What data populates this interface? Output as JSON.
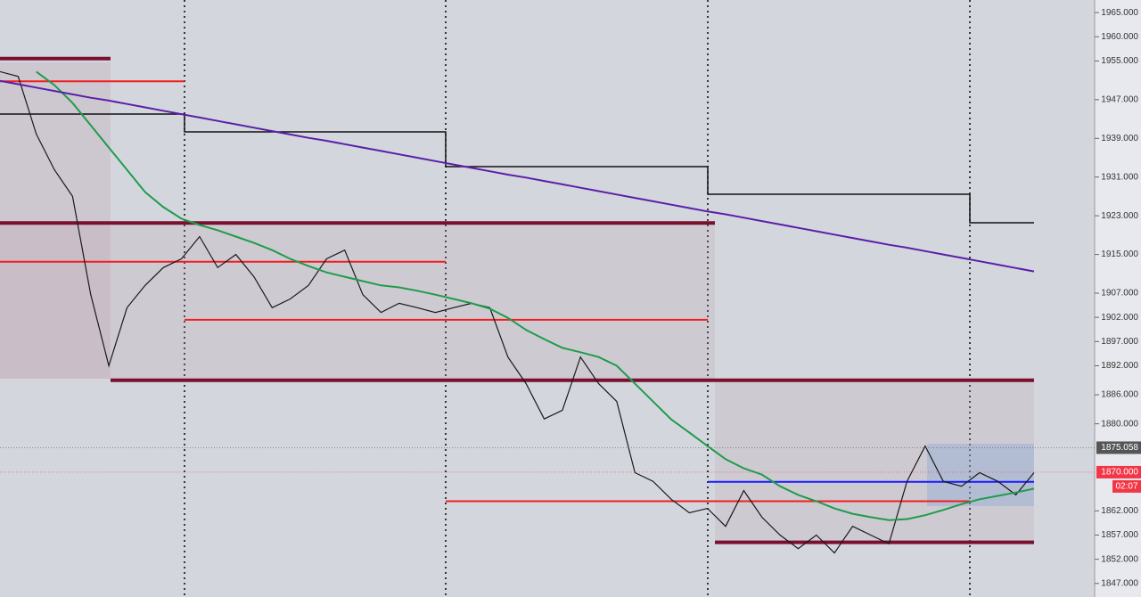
{
  "chart_data": {
    "type": "line",
    "ylim": [
      1844.2,
      1967.6
    ],
    "yticks": [
      {
        "value": 1965,
        "label": "1965.000"
      },
      {
        "value": 1960,
        "label": "1960.000"
      },
      {
        "value": 1955,
        "label": "1955.000"
      },
      {
        "value": 1947,
        "label": "1947.000"
      },
      {
        "value": 1939,
        "label": "1939.000"
      },
      {
        "value": 1931,
        "label": "1931.000"
      },
      {
        "value": 1923,
        "label": "1923.000"
      },
      {
        "value": 1915,
        "label": "1915.000"
      },
      {
        "value": 1907,
        "label": "1907.000"
      },
      {
        "value": 1902,
        "label": "1902.000"
      },
      {
        "value": 1897,
        "label": "1897.000"
      },
      {
        "value": 1892,
        "label": "1892.000"
      },
      {
        "value": 1886,
        "label": "1886.000"
      },
      {
        "value": 1880,
        "label": "1880.000"
      },
      {
        "value": 1862,
        "label": "1862.000"
      },
      {
        "value": 1857,
        "label": "1857.000"
      },
      {
        "value": 1852,
        "label": "1852.000"
      },
      {
        "value": 1847,
        "label": "1847.000"
      }
    ],
    "price_tags": [
      {
        "value": 1875.058,
        "label": "1875.058",
        "color": "#555555"
      },
      {
        "value": 1870,
        "label": "1870.000",
        "color": "#f23645"
      }
    ],
    "countdown": "02:07",
    "categories": [
      null,
      null,
      null,
      null,
      null,
      null,
      null,
      null,
      null,
      null,
      null,
      null,
      null,
      null,
      null,
      null,
      null,
      null,
      null,
      null,
      null,
      null,
      null,
      null,
      null,
      null,
      null,
      null,
      null,
      null,
      null,
      null,
      null,
      null,
      null,
      null,
      null,
      null,
      null,
      null,
      null,
      null,
      null,
      null,
      null,
      null,
      null,
      null,
      null,
      null,
      null,
      null,
      null,
      null,
      null,
      null,
      null,
      null
    ],
    "series": [
      {
        "color": "#1a1a1a",
        "values": [
          1952.8,
          1951.8,
          1939.9,
          1932.5,
          1927.0,
          1906.7,
          1892.0,
          1904.0,
          1908.6,
          1912.3,
          1914.1,
          1918.7,
          1912.3,
          1915.0,
          1910.4,
          1904.0,
          1905.8,
          1908.6,
          1914.1,
          1915.9,
          1906.7,
          1903.0,
          1904.9,
          1904.0,
          1903.0,
          1904.0,
          1904.9,
          1904.0,
          1893.8,
          1888.3,
          1881.0,
          1882.8,
          1893.8,
          1888.3,
          1884.6,
          1869.9,
          1868.1,
          1864.4,
          1861.6,
          1862.5,
          1858.8,
          1866.2,
          1860.7,
          1857.0,
          1854.2,
          1857.0,
          1853.3,
          1858.8,
          1857.0,
          1855.2,
          1868.1,
          1875.4,
          1868.1,
          1867.1,
          1869.9,
          1868.1,
          1865.3,
          1869.9
        ]
      },
      {
        "color": "#1e9c4a",
        "values": [
          null,
          null,
          1952.8,
          1950.0,
          1946.3,
          1941.7,
          1937.1,
          1932.5,
          1927.9,
          1924.8,
          1922.4,
          1921.1,
          1920.0,
          1918.7,
          1917.4,
          1915.9,
          1914.1,
          1912.6,
          1911.3,
          1910.4,
          1909.5,
          1908.6,
          1908.2,
          1907.5,
          1906.7,
          1905.8,
          1904.9,
          1903.8,
          1901.9,
          1899.4,
          1897.5,
          1895.7,
          1894.8,
          1893.8,
          1892.0,
          1888.3,
          1884.6,
          1880.9,
          1878.2,
          1875.4,
          1872.7,
          1870.8,
          1869.5,
          1867.1,
          1865.3,
          1864.0,
          1862.5,
          1861.4,
          1860.7,
          1860.1,
          1860.3,
          1861.1,
          1862.2,
          1863.4,
          1864.4,
          1865.1,
          1865.8,
          1866.6
        ]
      },
      {
        "color": "#5b1fa8",
        "values": [
          1950.9,
          1950.2,
          1949.5,
          1948.8,
          1948.1,
          1947.4,
          1946.8,
          1946.1,
          1945.4,
          1944.7,
          1944.0,
          1943.3,
          1942.6,
          1941.9,
          1941.2,
          1940.5,
          1939.8,
          1939.1,
          1938.5,
          1937.8,
          1937.1,
          1936.4,
          1935.7,
          1935.0,
          1934.3,
          1933.6,
          1932.9,
          1932.2,
          1931.5,
          1930.9,
          1930.2,
          1929.5,
          1928.8,
          1928.1,
          1927.4,
          1926.7,
          1926.0,
          1925.3,
          1924.6,
          1923.9,
          1923.3,
          1922.6,
          1921.9,
          1921.2,
          1920.5,
          1919.8,
          1919.1,
          1918.4,
          1917.7,
          1917.0,
          1916.4,
          1915.7,
          1915.0,
          1914.3,
          1913.6,
          1912.9,
          1912.2,
          1911.5
        ]
      }
    ],
    "levels": [
      {
        "value": 1955.5,
        "color": "#7a0f2e"
      },
      {
        "value": 1921.5,
        "color": "#7a0f2e"
      },
      {
        "value": 1889,
        "color": "#7a0f2e"
      },
      {
        "value": 1855.5,
        "color": "#7a0f2e"
      },
      {
        "value": 1950.8,
        "color": "#f21d1d"
      },
      {
        "value": 1913.5,
        "color": "#f21d1d"
      },
      {
        "value": 1901.5,
        "color": "#f21d1d"
      },
      {
        "value": 1864,
        "color": "#f21d1d"
      },
      {
        "value": 1868,
        "color": "#1a1aff"
      }
    ]
  }
}
